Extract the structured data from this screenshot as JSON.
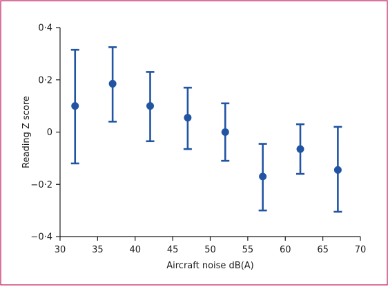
{
  "chart_data": {
    "type": "scatter",
    "title": "",
    "xlabel": "Aircraft noise dB(A)",
    "ylabel": "Reading Z score",
    "xlim": [
      30,
      70
    ],
    "ylim": [
      -0.4,
      0.4
    ],
    "x_ticks": [
      30,
      35,
      40,
      45,
      50,
      55,
      60,
      65,
      70
    ],
    "x_tick_labels": [
      "30",
      "35",
      "40",
      "45",
      "50",
      "55",
      "60",
      "65",
      "70"
    ],
    "y_ticks": [
      -0.4,
      -0.2,
      0,
      0.2,
      0.4
    ],
    "y_tick_labels": [
      "−0·4",
      "−0·2",
      "0",
      "0·2",
      "0·4"
    ],
    "grid": false,
    "series": [
      {
        "points": [
          {
            "x": 32,
            "y": 0.1,
            "lower": -0.12,
            "upper": 0.315
          },
          {
            "x": 37,
            "y": 0.185,
            "lower": 0.04,
            "upper": 0.325
          },
          {
            "x": 42,
            "y": 0.1,
            "lower": -0.035,
            "upper": 0.23
          },
          {
            "x": 47,
            "y": 0.055,
            "lower": -0.065,
            "upper": 0.17
          },
          {
            "x": 52,
            "y": 0.0,
            "lower": -0.11,
            "upper": 0.11
          },
          {
            "x": 57,
            "y": -0.17,
            "lower": -0.3,
            "upper": -0.045
          },
          {
            "x": 62,
            "y": -0.065,
            "lower": -0.16,
            "upper": 0.03
          },
          {
            "x": 67,
            "y": -0.145,
            "lower": -0.305,
            "upper": 0.02
          }
        ]
      }
    ]
  },
  "colors": {
    "marker": "#2154a3",
    "axis": "#1a1a1a",
    "frame_border": "#c2185b"
  }
}
